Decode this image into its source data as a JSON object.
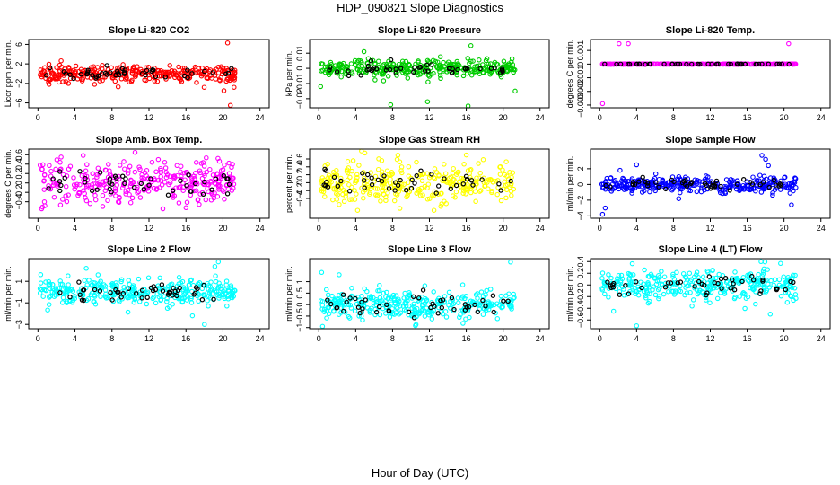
{
  "figure": {
    "title": "HDP_090821  Slope Diagnostics",
    "xlabel": "Hour of Day (UTC)"
  },
  "chart_data": [
    {
      "type": "scatter",
      "title": "Slope Li-820 CO2",
      "ylabel": "Licor ppm per min.",
      "color": "#ff0000",
      "xlim": [
        -1,
        25
      ],
      "ylim": [
        -7,
        7
      ],
      "xticks": [
        0,
        4,
        8,
        12,
        16,
        20,
        24
      ],
      "yticks": [
        -6,
        -2,
        2,
        6
      ],
      "x_range": [
        0.2,
        21.3
      ],
      "noise_sd": 0.8,
      "outliers": [
        {
          "x": 20.5,
          "y": 6.3
        },
        {
          "x": 20.8,
          "y": -6.5
        },
        {
          "x": 20.1,
          "y": -3.5
        },
        {
          "x": 1.2,
          "y": -2.2
        },
        {
          "x": 21.2,
          "y": -2.8
        }
      ]
    },
    {
      "type": "scatter",
      "title": "Slope Li-820 Pressure",
      "ylabel": "kPa per min.",
      "color": "#00cc00",
      "xlim": [
        -1,
        25
      ],
      "ylim": [
        -0.026,
        0.019
      ],
      "xticks": [
        0,
        4,
        8,
        12,
        16,
        20,
        24
      ],
      "yticks": [
        -0.02,
        -0.01,
        0,
        0.01
      ],
      "x_range": [
        0.2,
        21.3
      ],
      "noise_sd": 0.003,
      "outliers": [
        {
          "x": 7.8,
          "y": -0.024
        },
        {
          "x": 11.8,
          "y": -0.022
        },
        {
          "x": 16.2,
          "y": -0.025
        },
        {
          "x": 16.5,
          "y": 0.015
        },
        {
          "x": 21.3,
          "y": -0.015
        },
        {
          "x": 0.2,
          "y": -0.012
        },
        {
          "x": 4.9,
          "y": 0.011
        }
      ]
    },
    {
      "type": "scatter",
      "title": "Slope Li-820 Temp.",
      "ylabel": "degrees C per min.",
      "color": "#ff00ff",
      "xlim": [
        -1,
        25
      ],
      "ylim": [
        -0.0032,
        0.0018
      ],
      "xticks": [
        0,
        4,
        8,
        12,
        16,
        20,
        24
      ],
      "yticks": [
        -0.003,
        -0.002,
        -0.001,
        0,
        0.001
      ],
      "x_range": [
        0.2,
        21.3
      ],
      "noise_sd": 1e-05,
      "outliers": [
        {
          "x": 2.1,
          "y": 0.0015
        },
        {
          "x": 3.1,
          "y": 0.0015
        },
        {
          "x": 20.5,
          "y": 0.0015
        },
        {
          "x": 0.3,
          "y": -0.0029
        }
      ]
    },
    {
      "type": "scatter",
      "title": "Slope Amb. Box Temp.",
      "ylabel": "degrees C per min.",
      "color": "#ff00ff",
      "xlim": [
        -1,
        25
      ],
      "ylim": [
        -0.75,
        0.72
      ],
      "xticks": [
        0,
        4,
        8,
        12,
        16,
        20,
        24
      ],
      "yticks": [
        -0.4,
        -0.2,
        0,
        0.2,
        0.4,
        0.6
      ],
      "x_range": [
        0.2,
        21.3
      ],
      "noise_sd": 0.22,
      "outliers": [
        {
          "x": 0.4,
          "y": -0.55
        },
        {
          "x": 10.5,
          "y": 0.65
        },
        {
          "x": 2.5,
          "y": 0.55
        },
        {
          "x": 7.0,
          "y": -0.5
        },
        {
          "x": 13.5,
          "y": -0.55
        }
      ]
    },
    {
      "type": "scatter",
      "title": "Slope Gas Stream RH",
      "ylabel": "percent per min.",
      "color": "#ffff00",
      "xlim": [
        -1,
        25
      ],
      "ylim": [
        -0.9,
        0.85
      ],
      "xticks": [
        0,
        4,
        8,
        12,
        16,
        20,
        24
      ],
      "yticks": [
        -0.4,
        -0.2,
        0,
        0.2,
        0.4,
        0.6
      ],
      "x_range": [
        0.2,
        21.3
      ],
      "noise_sd": 0.25,
      "outliers": [
        {
          "x": 5.0,
          "y": 0.75
        },
        {
          "x": 4.2,
          "y": -0.7
        },
        {
          "x": 8.8,
          "y": -0.65
        },
        {
          "x": 16.0,
          "y": 0.7
        },
        {
          "x": 12.5,
          "y": -0.7
        }
      ]
    },
    {
      "type": "scatter",
      "title": "Slope Sample Flow",
      "ylabel": "ml/min per min.",
      "color": "#0000ff",
      "xlim": [
        -1,
        25
      ],
      "ylim": [
        -4.3,
        4.5
      ],
      "xticks": [
        0,
        4,
        8,
        12,
        16,
        20,
        24
      ],
      "yticks": [
        -4,
        -2,
        0,
        2
      ],
      "x_range": [
        0.2,
        21.3
      ],
      "noise_sd": 0.5,
      "outliers": [
        {
          "x": 0.3,
          "y": -3.8
        },
        {
          "x": 0.6,
          "y": -3.0
        },
        {
          "x": 17.6,
          "y": 3.7
        },
        {
          "x": 18.0,
          "y": 3.2
        },
        {
          "x": 18.3,
          "y": 2.4
        },
        {
          "x": 20.8,
          "y": -2.6
        },
        {
          "x": 4.0,
          "y": 2.5
        },
        {
          "x": 2.2,
          "y": 1.8
        }
      ]
    },
    {
      "type": "scatter",
      "title": "Slope Line 2 Flow",
      "ylabel": "ml/min per min.",
      "color": "#00ffff",
      "xlim": [
        -1,
        25
      ],
      "ylim": [
        -3.4,
        3.1
      ],
      "xticks": [
        0,
        4,
        8,
        12,
        16,
        20,
        24
      ],
      "yticks": [
        -3,
        -1,
        1
      ],
      "x_range": [
        0.2,
        21.3
      ],
      "noise_sd": 0.6,
      "outliers": [
        {
          "x": 18.0,
          "y": -3.0
        },
        {
          "x": 19.5,
          "y": 2.8
        },
        {
          "x": 16.7,
          "y": -2.2
        },
        {
          "x": 6.5,
          "y": 1.6
        }
      ]
    },
    {
      "type": "scatter",
      "title": "Slope Line 3 Flow",
      "ylabel": "ml/min per min.",
      "color": "#00ffff",
      "xlim": [
        -1,
        25
      ],
      "ylim": [
        -1.05,
        2.0
      ],
      "xticks": [
        0,
        4,
        8,
        12,
        16,
        20,
        24
      ],
      "yticks": [
        -1,
        -0.5,
        0,
        0.5,
        1
      ],
      "x_range": [
        0.2,
        21.3
      ],
      "noise_sd": 0.3,
      "outliers": [
        {
          "x": 20.8,
          "y": 1.85
        },
        {
          "x": 0.3,
          "y": 1.4
        },
        {
          "x": 2.2,
          "y": 1.3
        },
        {
          "x": 0.4,
          "y": -0.95
        }
      ]
    },
    {
      "type": "scatter",
      "title": "Slope Line 4 (LT) Flow",
      "ylabel": "ml/min per min.",
      "color": "#00ffff",
      "xlim": [
        -1,
        25
      ],
      "ylim": [
        -0.75,
        0.45
      ],
      "xticks": [
        0,
        4,
        8,
        12,
        16,
        20,
        24
      ],
      "yticks": [
        -0.6,
        -0.4,
        -0.2,
        0,
        0.2,
        0.4
      ],
      "x_range": [
        0.2,
        21.3
      ],
      "noise_sd": 0.13,
      "outliers": [
        {
          "x": 4.0,
          "y": -0.7
        },
        {
          "x": 17.5,
          "y": 0.4
        },
        {
          "x": 18.5,
          "y": -0.5
        },
        {
          "x": 1.5,
          "y": -0.45
        }
      ]
    }
  ]
}
